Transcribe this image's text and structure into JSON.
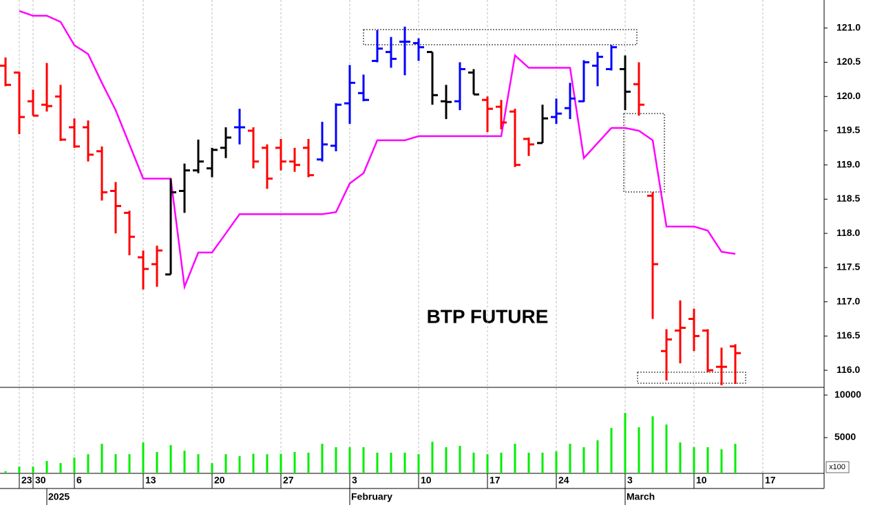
{
  "chart_data": [
    {
      "type": "ohlc",
      "title": "BTP FUTURE",
      "x": [
        0,
        1,
        2,
        3,
        4,
        5,
        6,
        7,
        8,
        9,
        10,
        11,
        12,
        13,
        14,
        15,
        16,
        17,
        18,
        19,
        20,
        21,
        22,
        23,
        24,
        25,
        26,
        27,
        28,
        29,
        30,
        31,
        32,
        33,
        34,
        35,
        36,
        37,
        38,
        39,
        40,
        41,
        42,
        43,
        44,
        45,
        46,
        47,
        48,
        49,
        50,
        51,
        52,
        53
      ],
      "open": [
        120.45,
        120.35,
        119.93,
        119.88,
        120.0,
        119.55,
        119.55,
        119.2,
        118.62,
        118.3,
        117.65,
        117.55,
        117.4,
        118.62,
        118.92,
        118.95,
        119.25,
        119.55,
        119.5,
        119.25,
        119.25,
        119.05,
        119.25,
        119.08,
        119.28,
        119.9,
        120.05,
        120.52,
        120.65,
        120.8,
        120.78,
        120.65,
        119.93,
        119.93,
        120.35,
        119.95,
        119.85,
        119.78,
        119.38,
        119.32,
        119.7,
        119.83,
        119.93,
        120.45,
        120.4,
        120.4,
        120.18,
        118.55,
        116.28,
        116.58,
        116.75,
        116.58,
        116.05,
        116.35
      ],
      "high": [
        120.57,
        120.36,
        120.1,
        120.49,
        120.17,
        119.68,
        119.65,
        119.27,
        118.75,
        118.33,
        117.75,
        117.82,
        118.8,
        119.02,
        119.37,
        119.25,
        119.55,
        119.82,
        119.55,
        119.3,
        119.38,
        119.25,
        119.38,
        119.63,
        119.9,
        120.46,
        120.32,
        120.97,
        120.87,
        121.02,
        120.85,
        120.65,
        120.17,
        120.5,
        120.4,
        120.0,
        119.95,
        119.82,
        119.4,
        119.88,
        119.97,
        120.2,
        120.53,
        120.65,
        120.75,
        120.6,
        120.5,
        118.6,
        116.6,
        117.02,
        116.9,
        116.6,
        116.33,
        116.38
      ],
      "low": [
        120.15,
        119.45,
        119.72,
        119.78,
        119.35,
        119.25,
        119.05,
        118.48,
        118.0,
        117.68,
        117.18,
        117.22,
        117.4,
        118.3,
        118.88,
        118.82,
        119.1,
        119.3,
        118.95,
        118.65,
        118.92,
        118.9,
        118.82,
        119.05,
        119.2,
        119.6,
        119.93,
        120.5,
        120.42,
        120.31,
        120.52,
        119.88,
        119.67,
        119.8,
        120.03,
        119.48,
        119.52,
        118.97,
        119.13,
        119.32,
        119.6,
        119.67,
        119.92,
        120.15,
        120.38,
        119.8,
        119.72,
        116.75,
        115.85,
        116.1,
        116.28,
        115.97,
        115.78,
        115.8
      ],
      "close": [
        120.17,
        119.7,
        119.72,
        119.86,
        119.37,
        119.27,
        119.15,
        118.6,
        118.4,
        117.95,
        117.48,
        117.75,
        118.6,
        118.92,
        119.05,
        119.22,
        119.4,
        119.55,
        119.05,
        118.8,
        119.05,
        119.0,
        118.85,
        119.3,
        119.88,
        120.2,
        119.95,
        120.7,
        120.55,
        120.8,
        120.72,
        120.02,
        119.92,
        120.4,
        120.03,
        119.82,
        119.62,
        119.0,
        119.3,
        119.68,
        119.75,
        119.97,
        120.5,
        120.58,
        120.72,
        120.07,
        119.88,
        117.55,
        116.45,
        116.62,
        116.5,
        116.0,
        116.05,
        116.25
      ],
      "bar_colors": [
        "#ff0000",
        "#ff0000",
        "#ff0000",
        "#ff0000",
        "#ff0000",
        "#ff0000",
        "#ff0000",
        "#ff0000",
        "#ff0000",
        "#ff0000",
        "#ff0000",
        "#ff0000",
        "#000000",
        "#000000",
        "#000000",
        "#000000",
        "#000000",
        "#0000ff",
        "#ff0000",
        "#ff0000",
        "#ff0000",
        "#ff0000",
        "#ff0000",
        "#0000ff",
        "#0000ff",
        "#0000ff",
        "#0000ff",
        "#0000ff",
        "#0000ff",
        "#0000ff",
        "#0000ff",
        "#000000",
        "#000000",
        "#0000ff",
        "#000000",
        "#ff0000",
        "#ff0000",
        "#ff0000",
        "#ff0000",
        "#000000",
        "#0000ff",
        "#0000ff",
        "#0000ff",
        "#0000ff",
        "#0000ff",
        "#000000",
        "#ff0000",
        "#ff0000",
        "#ff0000",
        "#ff0000",
        "#ff0000",
        "#ff0000",
        "#ff0000",
        "#ff0000"
      ],
      "line": {
        "color": "#ff00ff",
        "values": [
          null,
          121.25,
          121.18,
          121.18,
          121.09,
          120.75,
          120.62,
          120.2,
          119.8,
          119.3,
          118.8,
          118.8,
          118.8,
          117.22,
          117.72,
          117.72,
          118.0,
          118.28,
          118.28,
          118.28,
          118.28,
          118.28,
          118.28,
          118.28,
          118.31,
          118.73,
          118.88,
          119.36,
          119.36,
          119.36,
          119.42,
          119.42,
          119.42,
          119.42,
          119.42,
          119.42,
          119.42,
          120.6,
          120.42,
          120.42,
          120.42,
          120.42,
          119.1,
          119.32,
          119.54,
          119.54,
          119.5,
          119.36,
          118.1,
          118.1,
          118.1,
          118.04,
          117.73,
          117.7
        ]
      },
      "xlim": [
        -0.4,
        59.45
      ],
      "ylim": [
        115.75,
        121.41
      ],
      "yticks": [
        {
          "value": 116,
          "label": "116.0"
        },
        116.5,
        {
          "value": 117,
          "label": "117.0"
        },
        117.5,
        {
          "value": 118,
          "label": "118.0"
        },
        118.5,
        {
          "value": 119,
          "label": "119.0"
        },
        119.5,
        {
          "value": 120,
          "label": "120.0"
        },
        120.5,
        {
          "value": 121,
          "label": "121.0"
        }
      ]
    },
    {
      "type": "bar",
      "x": [
        0,
        1,
        2,
        3,
        4,
        5,
        6,
        7,
        8,
        9,
        10,
        11,
        12,
        13,
        14,
        15,
        16,
        17,
        18,
        19,
        20,
        21,
        22,
        23,
        24,
        25,
        26,
        27,
        28,
        29,
        30,
        31,
        32,
        33,
        34,
        35,
        36,
        37,
        38,
        39,
        40,
        41,
        42,
        43,
        44,
        45,
        46,
        47,
        48,
        49,
        50,
        51,
        52,
        53
      ],
      "values": [
        1050,
        1600,
        1600,
        2250,
        2000,
        2650,
        3050,
        4270,
        3050,
        3050,
        4430,
        3300,
        4110,
        3470,
        3050,
        2000,
        3050,
        2820,
        3100,
        3050,
        3100,
        3300,
        3230,
        4270,
        3870,
        3870,
        3870,
        3230,
        3230,
        3230,
        3050,
        4520,
        3870,
        4030,
        3230,
        3050,
        3230,
        4270,
        3230,
        3230,
        3390,
        4270,
        3870,
        4680,
        6130,
        7900,
        6210,
        7500,
        6530,
        4430,
        3870,
        3870,
        3630,
        4270
      ],
      "color": "#00ee00",
      "unit_label": "x100",
      "xlim": [
        -0.4,
        59.45
      ],
      "ylim": [
        800,
        10900
      ],
      "yticks": [
        5000,
        10000
      ],
      "xticks": [
        {
          "value": 1,
          "label": "23"
        },
        {
          "value": 2,
          "label": "30"
        },
        {
          "value": 5,
          "label": "6"
        },
        {
          "value": 10,
          "label": "13"
        },
        {
          "value": 15,
          "label": "20"
        },
        {
          "value": 20,
          "label": "27"
        },
        {
          "value": 25,
          "label": "3"
        },
        {
          "value": 30,
          "label": "10"
        },
        {
          "value": 35,
          "label": "17"
        },
        {
          "value": 40,
          "label": "24"
        },
        {
          "value": 45,
          "label": "3"
        },
        {
          "value": 50,
          "label": "10"
        },
        {
          "value": 55,
          "label": "17"
        }
      ],
      "month_labels": [
        {
          "value": 3,
          "label": "2025"
        },
        {
          "value": 25,
          "label": "February"
        },
        {
          "value": 45,
          "label": "March"
        }
      ]
    }
  ]
}
